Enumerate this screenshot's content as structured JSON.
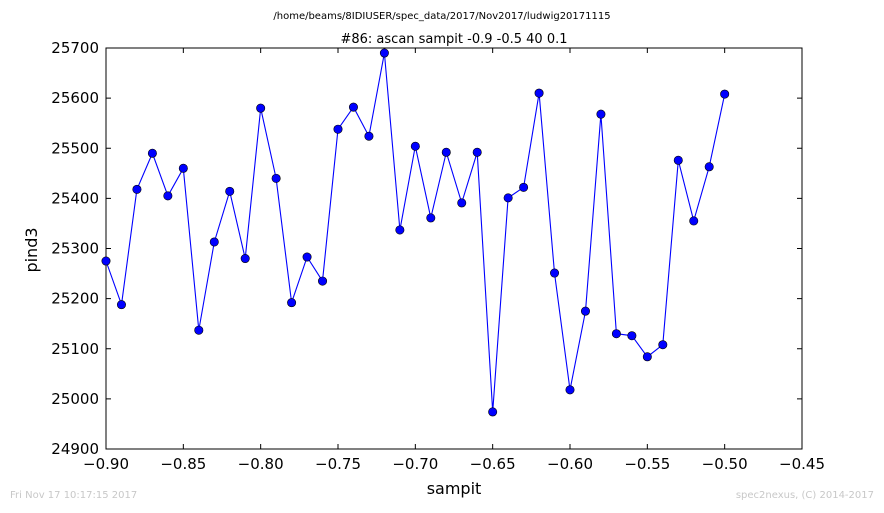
{
  "suptitle": "/home/beams/8IDIUSER/spec_data/2017/Nov2017/ludwig20171115",
  "footer": {
    "timestamp": "Fri Nov 17 10:17:15 2017",
    "credit": "spec2nexus, (C) 2014-2017"
  },
  "chart_data": {
    "type": "line",
    "title": "#86: ascan  sampit -0.9 -0.5  40 0.1",
    "xlabel": "sampit",
    "ylabel": "pind3",
    "xlim": [
      -0.9,
      -0.45
    ],
    "ylim": [
      24900,
      25700
    ],
    "xticks": [
      -0.9,
      -0.85,
      -0.8,
      -0.75,
      -0.7,
      -0.65,
      -0.6,
      -0.55,
      -0.5,
      -0.45
    ],
    "xtick_labels": [
      "−0.90",
      "−0.85",
      "−0.80",
      "−0.75",
      "−0.70",
      "−0.65",
      "−0.60",
      "−0.55",
      "−0.50",
      "−0.45"
    ],
    "yticks": [
      24900,
      25000,
      25100,
      25200,
      25300,
      25400,
      25500,
      25600,
      25700
    ],
    "ytick_labels": [
      "24900",
      "25000",
      "25100",
      "25200",
      "25300",
      "25400",
      "25500",
      "25600",
      "25700"
    ],
    "grid": false,
    "color": "#0000ff",
    "series": [
      {
        "x": [
          -0.9,
          -0.89,
          -0.88,
          -0.87,
          -0.86,
          -0.85,
          -0.84,
          -0.83,
          -0.82,
          -0.81,
          -0.8,
          -0.79,
          -0.78,
          -0.77,
          -0.76,
          -0.75,
          -0.74,
          -0.73,
          -0.72,
          -0.71,
          -0.7,
          -0.69,
          -0.68,
          -0.67,
          -0.66,
          -0.65,
          -0.64,
          -0.63,
          -0.62,
          -0.61,
          -0.6,
          -0.59,
          -0.58,
          -0.57,
          -0.56,
          -0.55,
          -0.54,
          -0.53,
          -0.52,
          -0.51,
          -0.5
        ],
        "y": [
          25275,
          25188,
          25418,
          25490,
          25405,
          25460,
          25137,
          25313,
          25414,
          25280,
          25580,
          25440,
          25192,
          25283,
          25235,
          25538,
          25582,
          25524,
          25690,
          25337,
          25504,
          25361,
          25492,
          25391,
          25492,
          24974,
          25401,
          25422,
          25610,
          25251,
          25018,
          25175,
          25568,
          25130,
          25126,
          25084,
          25108,
          25476,
          25355,
          25463,
          25608
        ]
      }
    ]
  }
}
